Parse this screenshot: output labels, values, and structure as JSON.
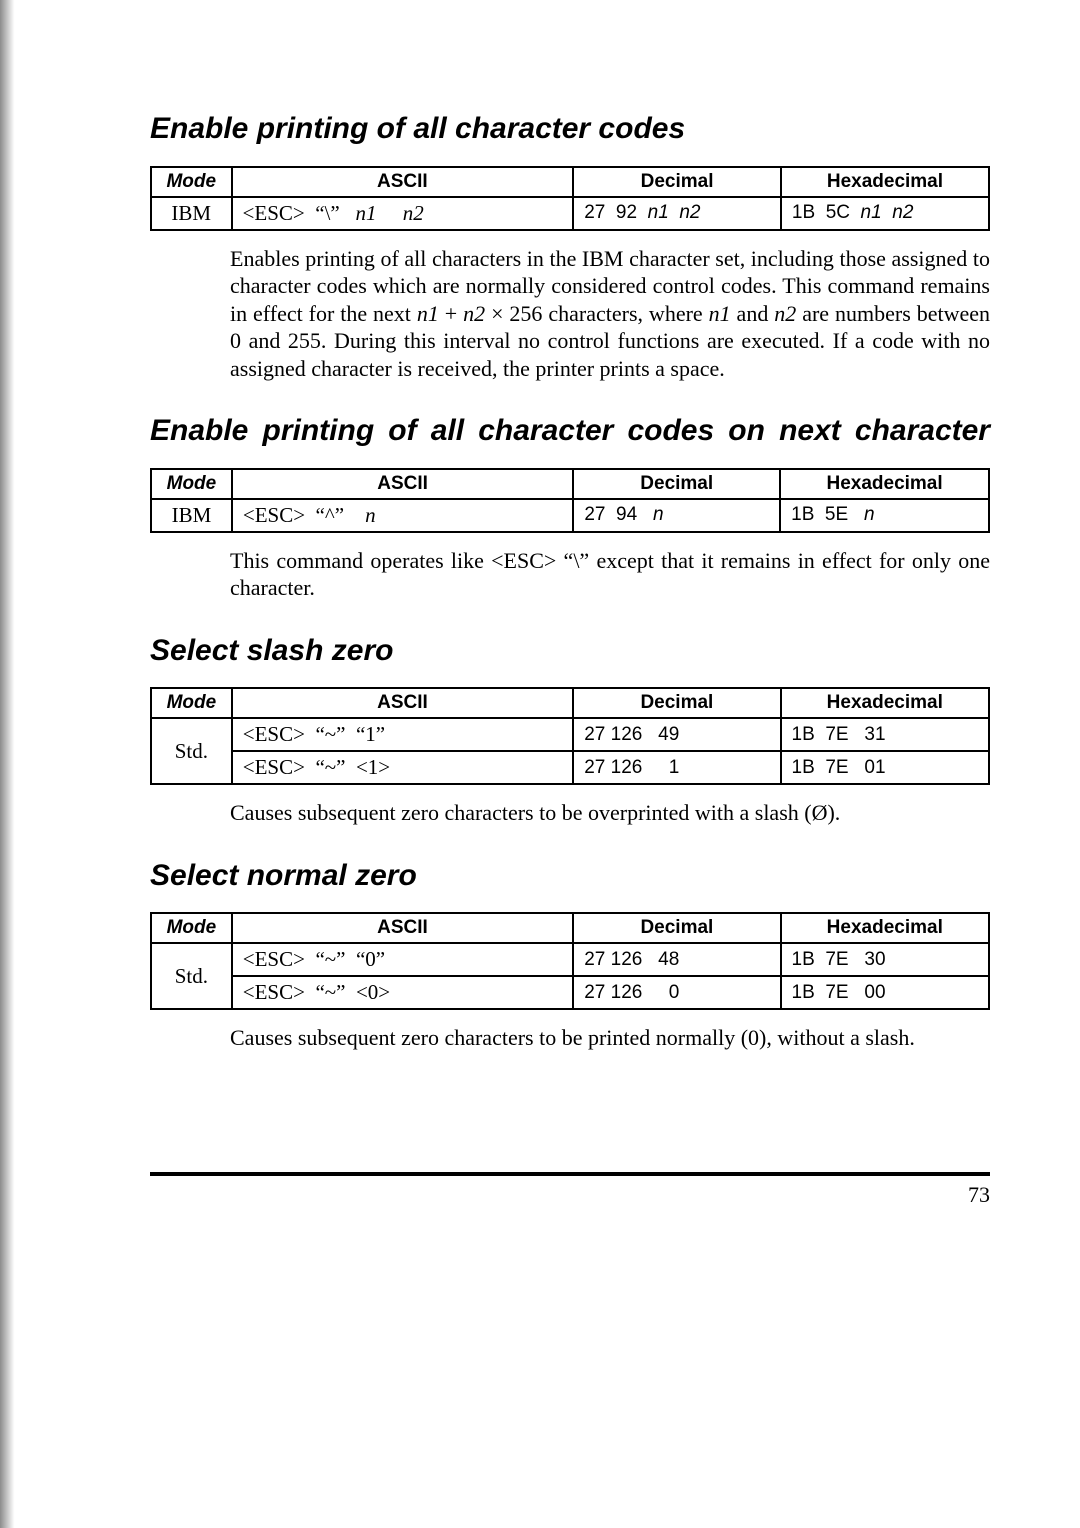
{
  "page_number": "73",
  "headers": {
    "mode": "Mode",
    "ascii": "ASCII",
    "decimal": "Decimal",
    "hex": "Hexadecimal"
  },
  "sections": [
    {
      "title": "Enable printing of all character codes",
      "title_stretch": false,
      "rows": [
        {
          "mode": "IBM",
          "ascii_html": "&lt;ESC&gt;&nbsp;&nbsp;&ldquo;\\&rdquo;&nbsp;&nbsp;&nbsp;<span class='ital'>n1</span>&nbsp;&nbsp;&nbsp;&nbsp;&nbsp;<span class='ital'>n2</span>",
          "dec_html": "27&nbsp;&nbsp;92&nbsp;&nbsp;<span class='ital'>n1</span>&nbsp;&nbsp;<span class='ital'>n2</span>",
          "hex_html": "1B&nbsp;&nbsp;5C&nbsp;&nbsp;<span class='ital'>n1</span>&nbsp;&nbsp;<span class='ital'>n2</span>"
        }
      ],
      "body_html": "Enables printing of all characters in the IBM character set, including those assigned to character codes which are normally considered control codes. This command remains in effect for the next <span class='ital'>n1</span> + <span class='ital'>n2</span> &times; 256 characters, where <span class='ital'>n1</span> and <span class='ital'>n2</span> are numbers between 0 and 255. During this interval no control functions are executed. If a code with no assigned character is received, the printer prints a space."
    },
    {
      "title": "Enable printing of all character codes on next character",
      "title_stretch": true,
      "rows": [
        {
          "mode": "IBM",
          "ascii_html": "&lt;ESC&gt;&nbsp;&nbsp;&ldquo;^&rdquo;&nbsp;&nbsp;&nbsp;&nbsp;<span class='ital'>n</span>",
          "dec_html": "27&nbsp;&nbsp;94&nbsp;&nbsp;&nbsp;<span class='ital'>n</span>",
          "hex_html": "1B&nbsp;&nbsp;5E&nbsp;&nbsp;&nbsp;<span class='ital'>n</span>"
        }
      ],
      "body_html": "This command operates like &lt;ESC&gt; &ldquo;\\&rdquo; except that it remains in effect for only one character."
    },
    {
      "title": "Select slash zero",
      "title_stretch": false,
      "rows": [
        {
          "mode": "Std.",
          "rowspan": 2,
          "ascii_html": "&lt;ESC&gt;&nbsp;&nbsp;&ldquo;~&rdquo;&nbsp;&nbsp;&ldquo;1&rdquo;",
          "dec_html": "27&nbsp;126&nbsp;&nbsp;&nbsp;49",
          "hex_html": "1B&nbsp;&nbsp;7E&nbsp;&nbsp;&nbsp;31"
        },
        {
          "ascii_html": "&lt;ESC&gt;&nbsp;&nbsp;&ldquo;~&rdquo;&nbsp;&nbsp;&lt;1&gt;",
          "dec_html": "27&nbsp;126&nbsp;&nbsp;&nbsp;&nbsp;&nbsp;1",
          "hex_html": "1B&nbsp;&nbsp;7E&nbsp;&nbsp;&nbsp;01"
        }
      ],
      "body_html": "Causes subsequent zero characters to be overprinted with a slash (&Oslash;)."
    },
    {
      "title": "Select normal zero",
      "title_stretch": false,
      "rows": [
        {
          "mode": "Std.",
          "rowspan": 2,
          "ascii_html": "&lt;ESC&gt;&nbsp;&nbsp;&ldquo;~&rdquo;&nbsp;&nbsp;&ldquo;0&rdquo;",
          "dec_html": "27&nbsp;126&nbsp;&nbsp;&nbsp;48",
          "hex_html": "1B&nbsp;&nbsp;7E&nbsp;&nbsp;&nbsp;30"
        },
        {
          "ascii_html": "&lt;ESC&gt;&nbsp;&nbsp;&ldquo;~&rdquo;&nbsp;&nbsp;&lt;0&gt;",
          "dec_html": "27&nbsp;126&nbsp;&nbsp;&nbsp;&nbsp;&nbsp;0",
          "hex_html": "1B&nbsp;&nbsp;7E&nbsp;&nbsp;&nbsp;00"
        }
      ],
      "body_html": "Causes subsequent zero characters to be printed normally (0), without a slash."
    }
  ]
}
